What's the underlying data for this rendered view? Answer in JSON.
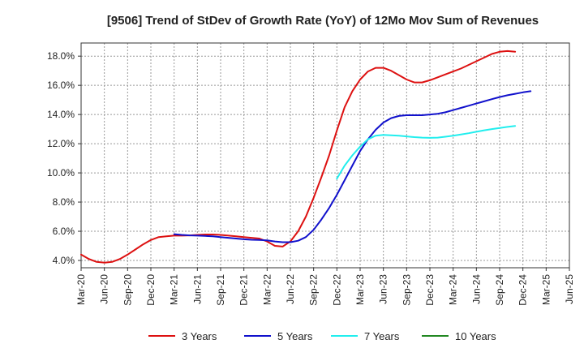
{
  "chart_data": {
    "type": "line",
    "title": "[9506]  Trend of StDev of Growth Rate (YoY) of 12Mo Mov Sum of Revenues",
    "xlabel": "",
    "ylabel": "",
    "ylim": [
      3.5,
      18.9
    ],
    "y_ticks": [
      4.0,
      6.0,
      8.0,
      10.0,
      12.0,
      14.0,
      16.0,
      18.0
    ],
    "y_tick_labels": [
      "4.0%",
      "6.0%",
      "8.0%",
      "10.0%",
      "12.0%",
      "14.0%",
      "16.0%",
      "18.0%"
    ],
    "x_tick_labels": [
      "Mar-20",
      "Jun-20",
      "Sep-20",
      "Dec-20",
      "Mar-21",
      "Jun-21",
      "Sep-21",
      "Dec-21",
      "Mar-22",
      "Jun-22",
      "Sep-22",
      "Dec-22",
      "Mar-23",
      "Jun-23",
      "Sep-23",
      "Dec-23",
      "Mar-24",
      "Jun-24",
      "Sep-24",
      "Dec-24",
      "Mar-25",
      "Jun-25"
    ],
    "grid": true,
    "legend_position": "bottom",
    "series": [
      {
        "name": "3 Years",
        "color": "#dd1111",
        "start_index": 0,
        "values": [
          4.4,
          4.1,
          3.9,
          3.85,
          3.9,
          4.1,
          4.4,
          4.75,
          5.1,
          5.4,
          5.6,
          5.65,
          5.7,
          5.7,
          5.72,
          5.75,
          5.78,
          5.78,
          5.75,
          5.7,
          5.65,
          5.6,
          5.55,
          5.5,
          5.3,
          5.0,
          4.95,
          5.3,
          6.0,
          7.0,
          8.3,
          9.7,
          11.2,
          12.9,
          14.5,
          15.6,
          16.4,
          16.95,
          17.2,
          17.2,
          17.0,
          16.7,
          16.4,
          16.2,
          16.2,
          16.35,
          16.55,
          16.75,
          16.95,
          17.15,
          17.4,
          17.65,
          17.9,
          18.15,
          18.3,
          18.35,
          18.3
        ]
      },
      {
        "name": "5 Years",
        "color": "#1111cc",
        "start_index": 12,
        "values": [
          5.8,
          5.75,
          5.72,
          5.7,
          5.68,
          5.65,
          5.6,
          5.55,
          5.5,
          5.45,
          5.42,
          5.4,
          5.38,
          5.3,
          5.25,
          5.25,
          5.35,
          5.6,
          6.1,
          6.8,
          7.6,
          8.5,
          9.5,
          10.5,
          11.5,
          12.3,
          12.95,
          13.45,
          13.75,
          13.9,
          13.95,
          13.95,
          13.95,
          14.0,
          14.05,
          14.15,
          14.3,
          14.45,
          14.6,
          14.75,
          14.9,
          15.05,
          15.2,
          15.32,
          15.42,
          15.52,
          15.6
        ]
      },
      {
        "name": "7 Years",
        "color": "#22eeee",
        "start_index": 33,
        "values": [
          9.6,
          10.5,
          11.2,
          11.8,
          12.3,
          12.55,
          12.6,
          12.58,
          12.55,
          12.5,
          12.45,
          12.42,
          12.4,
          12.42,
          12.48,
          12.55,
          12.63,
          12.72,
          12.82,
          12.92,
          13.0,
          13.08,
          13.15,
          13.22
        ]
      },
      {
        "name": "10 Years",
        "color": "#228822",
        "start_index": 0,
        "values": []
      }
    ]
  }
}
